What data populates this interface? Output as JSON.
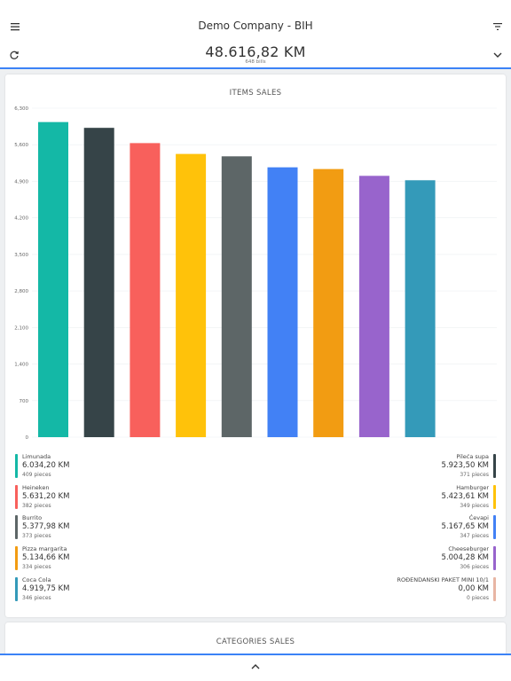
{
  "header": {
    "title": "Demo Company - BIH"
  },
  "totals": {
    "amount": "48.616,82 KM",
    "bills": "648 bills"
  },
  "items_card": {
    "title": "ITEMS SALES"
  },
  "categories_card": {
    "title": "CATEGORIES SALES"
  },
  "colors": {
    "accent": "#3b82f6"
  },
  "icons": [
    "menu-icon",
    "filter-icon",
    "refresh-icon",
    "chevron-down-icon",
    "chevron-up-icon"
  ],
  "legend": [
    {
      "name": "Limunada",
      "value": "6.034,20 KM",
      "count": "409 pieces",
      "color": "#14b8a6"
    },
    {
      "name": "Pileća supa",
      "value": "5.923,50 KM",
      "count": "371 pieces",
      "color": "#364448"
    },
    {
      "name": "Heineken",
      "value": "5.631,20 KM",
      "count": "382 pieces",
      "color": "#f8605c"
    },
    {
      "name": "Hamburger",
      "value": "5.423,61 KM",
      "count": "349 pieces",
      "color": "#ffc20a"
    },
    {
      "name": "Burrito",
      "value": "5.377,98 KM",
      "count": "373 pieces",
      "color": "#5d6667"
    },
    {
      "name": "Ćevapi",
      "value": "5.167,65 KM",
      "count": "347 pieces",
      "color": "#4281f5"
    },
    {
      "name": "Pizza margarita",
      "value": "5.134,66 KM",
      "count": "334 pieces",
      "color": "#f29c12"
    },
    {
      "name": "Cheeseburger",
      "value": "5.004,28 KM",
      "count": "306 pieces",
      "color": "#9864cc"
    },
    {
      "name": "Coca Cola",
      "value": "4.919,75 KM",
      "count": "346 pieces",
      "color": "#349ab9"
    },
    {
      "name": "ROĐENDANSKI PAKET MINI 10/1",
      "value": "0,00 KM",
      "count": "0 pieces",
      "color": "#e8b6a4"
    }
  ],
  "chart_data": {
    "type": "bar",
    "title": "ITEMS SALES",
    "categories": [
      "Limunada",
      "Pileća supa",
      "Heineken",
      "Hamburger",
      "Burrito",
      "Ćevapi",
      "Pizza margarita",
      "Cheeseburger",
      "Coca Cola",
      "ROĐENDANSKI PAKET MINI 10/1"
    ],
    "values": [
      6034.2,
      5923.5,
      5631.2,
      5423.61,
      5377.98,
      5167.65,
      5134.66,
      5004.28,
      4919.75,
      0
    ],
    "colors": [
      "#14b8a6",
      "#364448",
      "#f8605c",
      "#ffc20a",
      "#5d6667",
      "#4281f5",
      "#f29c12",
      "#9864cc",
      "#349ab9",
      "#e8b6a4"
    ],
    "yticks": [
      "0",
      "700",
      "1,400",
      "2,100",
      "2,800",
      "3,500",
      "4,200",
      "4,900",
      "5,600",
      "6,300"
    ],
    "ylim": [
      0,
      6300
    ],
    "grid": true,
    "xlabel": "",
    "ylabel": ""
  }
}
